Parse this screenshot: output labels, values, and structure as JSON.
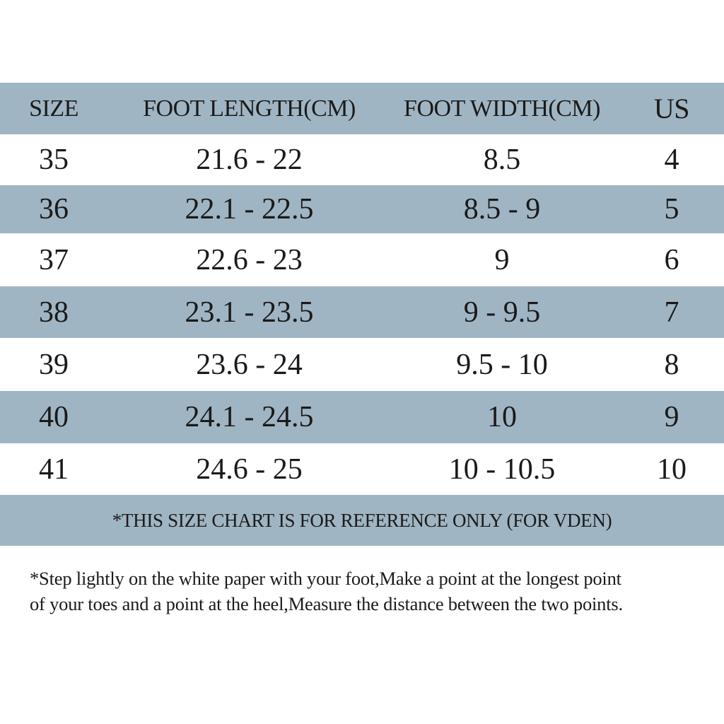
{
  "table": {
    "headers": [
      "SIZE",
      "FOOT LENGTH(CM)",
      "FOOT WIDTH(CM)",
      "US"
    ],
    "rows": [
      [
        "35",
        "21.6 - 22",
        "8.5",
        "4"
      ],
      [
        "36",
        "22.1 - 22.5",
        "8.5 - 9",
        "5"
      ],
      [
        "37",
        "22.6 - 23",
        "9",
        "6"
      ],
      [
        "38",
        "23.1 - 23.5",
        "9 - 9.5",
        "7"
      ],
      [
        "39",
        "23.6 - 24",
        "9.5 - 10",
        "8"
      ],
      [
        "40",
        "24.1 - 24.5",
        "10",
        "9"
      ],
      [
        "41",
        "24.6 - 25",
        "10 - 10.5",
        "10"
      ]
    ],
    "footer": "*THIS SIZE CHART IS FOR REFERENCE ONLY (FOR VDEN)"
  },
  "note": {
    "line1": "*Step lightly on the white paper with your foot,Make a point at the longest point",
    "line2": "of your toes and a point at the heel,Measure the distance between the two points."
  },
  "colors": {
    "band": "#a0b5c3",
    "background": "#ffffff",
    "text": "#1a1a1a"
  }
}
